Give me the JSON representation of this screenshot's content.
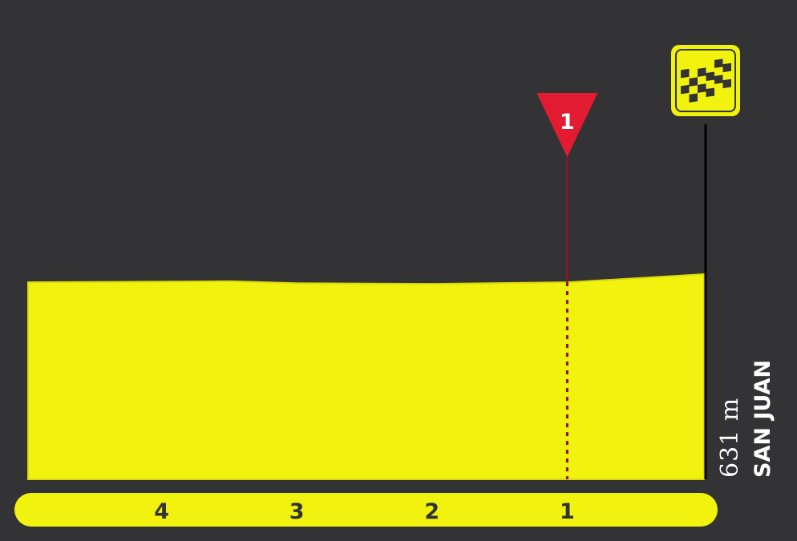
{
  "chart_data": {
    "type": "area",
    "title": "",
    "xlabel": "",
    "ylabel": "",
    "x_unit": "km to finish",
    "x_ticks": [
      "4",
      "3",
      "2",
      "1"
    ],
    "x": [
      5.0,
      4.0,
      3.5,
      3.0,
      2.0,
      1.0,
      0.0
    ],
    "elevation": [
      606,
      608,
      609,
      603,
      601,
      606,
      631
    ],
    "xlim": [
      5.0,
      0.0
    ],
    "fill_color": "#f2f20f",
    "background_color": "#333335",
    "grid": false,
    "markers": [
      {
        "type": "intermediate-sprint",
        "label": "1",
        "km_to_finish": 1.0,
        "color": "#e31b30"
      }
    ],
    "finish": {
      "place": "SAN JUAN",
      "altitude": "631 m",
      "icon": "checkered-flag-icon"
    }
  }
}
